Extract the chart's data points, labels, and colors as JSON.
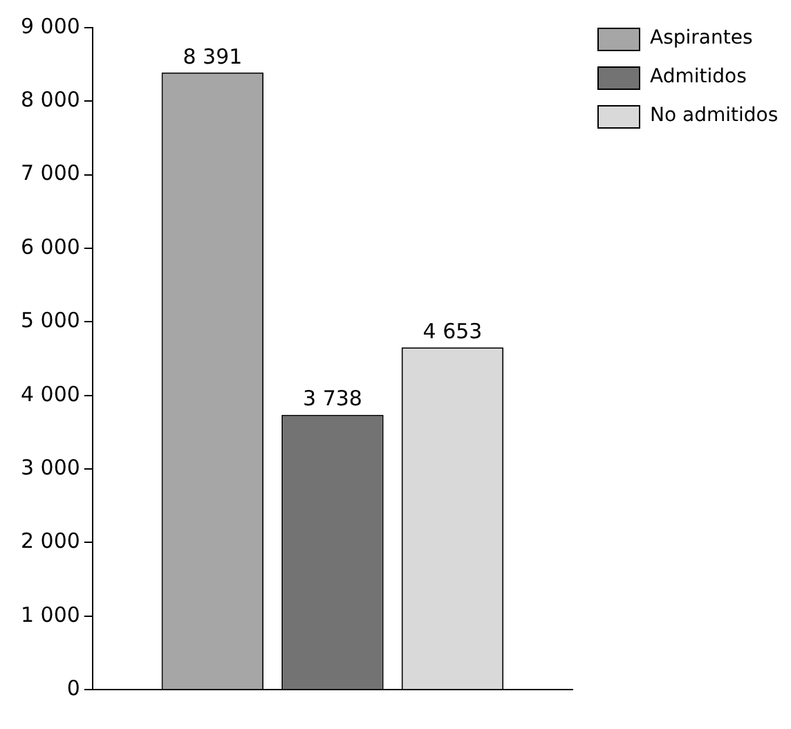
{
  "chart_data": {
    "type": "bar",
    "categories": [
      null
    ],
    "series": [
      {
        "name": "Aspirantes",
        "color": "#a6a6a6",
        "values": [
          8391
        ],
        "value_labels": [
          "8 391"
        ]
      },
      {
        "name": "Admitidos",
        "color": "#737373",
        "values": [
          3738
        ],
        "value_labels": [
          "3 738"
        ]
      },
      {
        "name": "No admitidos",
        "color": "#d9d9d9",
        "values": [
          4653
        ],
        "value_labels": [
          "4 653"
        ]
      }
    ],
    "ylim": [
      0,
      9000
    ],
    "yticks": [
      {
        "value": 0,
        "label": "0"
      },
      {
        "value": 1000,
        "label": "1 000"
      },
      {
        "value": 2000,
        "label": "2 000"
      },
      {
        "value": 3000,
        "label": "3 000"
      },
      {
        "value": 4000,
        "label": "4 000"
      },
      {
        "value": 5000,
        "label": "5 000"
      },
      {
        "value": 6000,
        "label": "6 000"
      },
      {
        "value": 7000,
        "label": "7 000"
      },
      {
        "value": 8000,
        "label": "8 000"
      },
      {
        "value": 9000,
        "label": "9 000"
      }
    ],
    "grid": false,
    "legend": "top right"
  }
}
